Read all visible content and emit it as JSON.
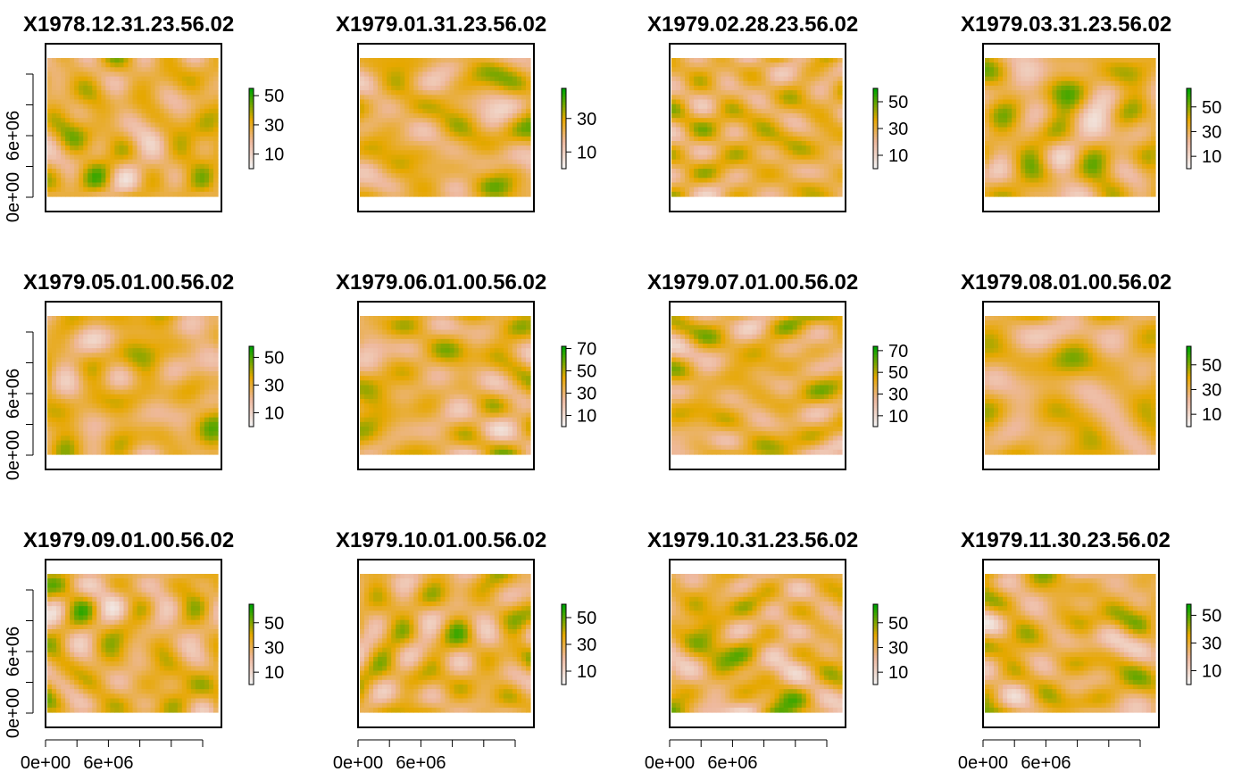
{
  "chart_data": {
    "type": "heatmap",
    "layout": {
      "rows": 3,
      "cols": 4
    },
    "palette": [
      "#F2F2F2",
      "#EEB99F",
      "#E6A800",
      "#00A600"
    ],
    "axis_tick_labels": {
      "x": [
        "0e+00",
        "6e+06"
      ],
      "y": [
        "0e+00",
        "6e+06"
      ]
    },
    "panels": [
      {
        "title": "X1978.12.31.23.56.02",
        "legend_ticks": [
          "10",
          "30",
          "50"
        ],
        "zlim": [
          0,
          55
        ]
      },
      {
        "title": "X1979.01.31.23.56.02",
        "legend_ticks": [
          "10",
          "30"
        ],
        "zlim": [
          0,
          48
        ]
      },
      {
        "title": "X1979.02.28.23.56.02",
        "legend_ticks": [
          "10",
          "30",
          "50"
        ],
        "zlim": [
          0,
          60
        ]
      },
      {
        "title": "X1979.03.31.23.56.02",
        "legend_ticks": [
          "10",
          "30",
          "50"
        ],
        "zlim": [
          0,
          65
        ]
      },
      {
        "title": "X1979.05.01.00.56.02",
        "legend_ticks": [
          "10",
          "30",
          "50"
        ],
        "zlim": [
          0,
          58
        ]
      },
      {
        "title": "X1979.06.01.00.56.02",
        "legend_ticks": [
          "10",
          "30",
          "50",
          "70"
        ],
        "zlim": [
          0,
          72
        ]
      },
      {
        "title": "X1979.07.01.00.56.02",
        "legend_ticks": [
          "10",
          "30",
          "50",
          "70"
        ],
        "zlim": [
          0,
          74
        ]
      },
      {
        "title": "X1979.08.01.00.56.02",
        "legend_ticks": [
          "10",
          "30",
          "50"
        ],
        "zlim": [
          0,
          65
        ]
      },
      {
        "title": "X1979.09.01.00.56.02",
        "legend_ticks": [
          "10",
          "30",
          "50"
        ],
        "zlim": [
          0,
          65
        ]
      },
      {
        "title": "X1979.10.01.00.56.02",
        "legend_ticks": [
          "10",
          "30",
          "50"
        ],
        "zlim": [
          0,
          60
        ]
      },
      {
        "title": "X1979.10.31.23.56.02",
        "legend_ticks": [
          "10",
          "30",
          "50"
        ],
        "zlim": [
          0,
          65
        ]
      },
      {
        "title": "X1979.11.30.23.56.02",
        "legend_ticks": [
          "10",
          "30",
          "50"
        ],
        "zlim": [
          0,
          58
        ]
      }
    ]
  }
}
